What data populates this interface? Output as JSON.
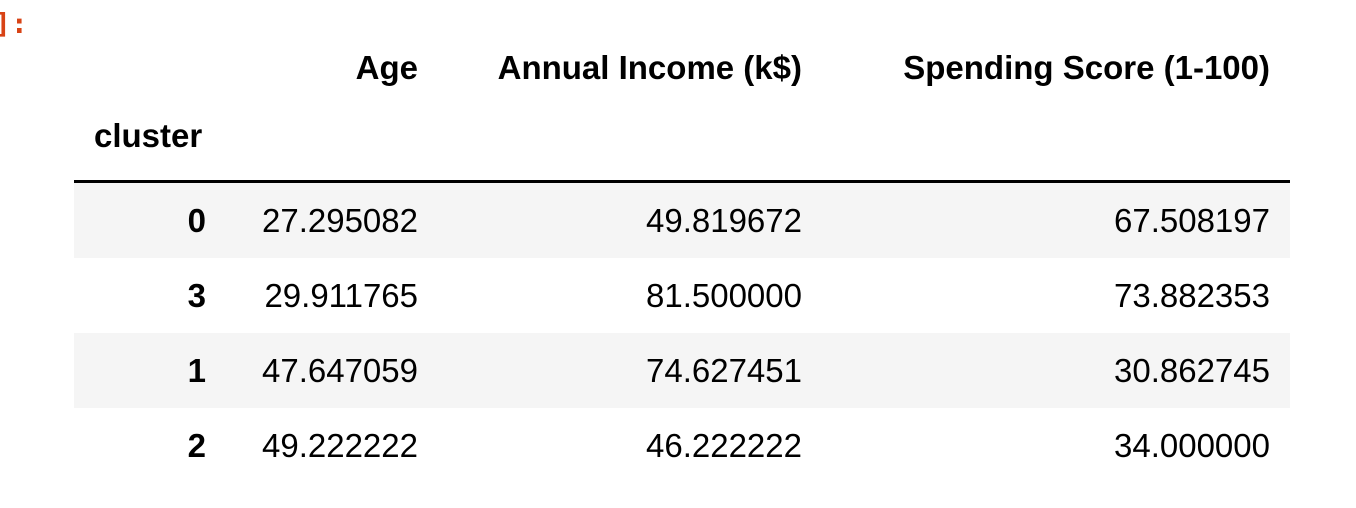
{
  "prompt": {
    "text": "]:",
    "color": "#d84315"
  },
  "table": {
    "index_name": "cluster",
    "columns": [
      "Age",
      "Annual Income (k$)",
      "Spending Score (1-100)"
    ],
    "rows": [
      {
        "index": "0",
        "values": [
          "27.295082",
          "49.819672",
          "67.508197"
        ]
      },
      {
        "index": "3",
        "values": [
          "29.911765",
          "81.500000",
          "73.882353"
        ]
      },
      {
        "index": "1",
        "values": [
          "47.647059",
          "74.627451",
          "30.862745"
        ]
      },
      {
        "index": "2",
        "values": [
          "49.222222",
          "46.222222",
          "34.000000"
        ]
      }
    ],
    "stripe_color": "#f5f5f5"
  }
}
